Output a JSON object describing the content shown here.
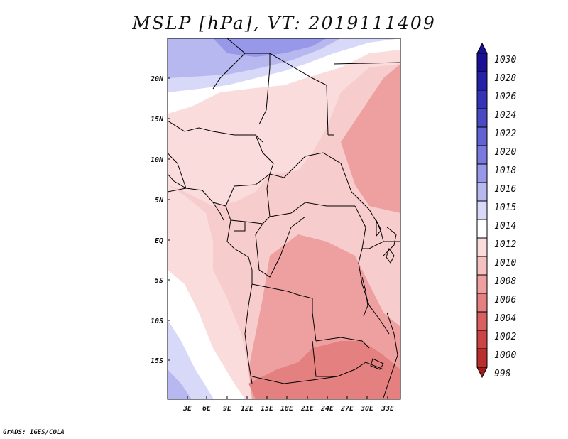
{
  "title": "MSLP [hPa], VT: 2019111409",
  "credit": "GrADS: IGES/COLA",
  "map": {
    "lat_labels": [
      "20N",
      "15N",
      "10N",
      "5N",
      "EQ",
      "5S",
      "10S",
      "15S"
    ],
    "lon_labels": [
      "3E",
      "6E",
      "9E",
      "12E",
      "15E",
      "18E",
      "21E",
      "24E",
      "27E",
      "30E",
      "33E"
    ]
  },
  "colorbar": {
    "levels": [
      "1030",
      "1028",
      "1026",
      "1024",
      "1022",
      "1020",
      "1018",
      "1016",
      "1015",
      "1014",
      "1012",
      "1010",
      "1008",
      "1006",
      "1004",
      "1002",
      "1000",
      "998"
    ],
    "colors": [
      "#1a1096",
      "#2520a8",
      "#3434b8",
      "#4a4ac6",
      "#6262d3",
      "#7a7ade",
      "#9898e8",
      "#b8b8f0",
      "#d8d8f8",
      "#ffffff",
      "#fadcdc",
      "#f5c0c0",
      "#eea0a0",
      "#e48080",
      "#d86060",
      "#cc4444",
      "#bb2e2e",
      "#a01c1c"
    ]
  }
}
